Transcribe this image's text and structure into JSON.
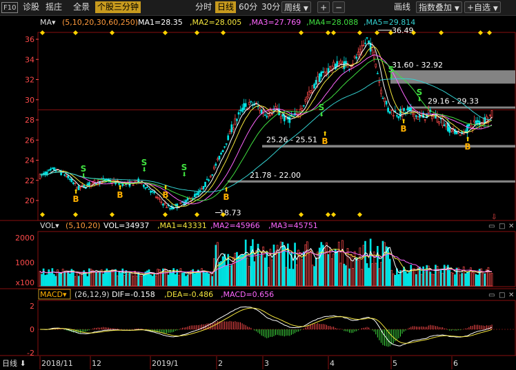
{
  "toolbar": {
    "f10": "F10",
    "zhengu": "诊股",
    "bangzhu": "摇庄",
    "quanjing": "全景",
    "fenzhong": "个股三分钟",
    "fenshi": "分时",
    "rixian": "日线",
    "min60": "60分",
    "min30": "30分",
    "zhouxian": "周线",
    "plus": "+",
    "minus": "−",
    "huaxian": "画线",
    "zhishudiejia": "指数叠加",
    "zixuan": "+自选"
  },
  "main_header": {
    "ma_label": "MA▾",
    "ma_params": "(5,10,20,30,60,250)",
    "ma1": "MA1=28.35",
    "ma2": ",MA2=28.005",
    "ma3": ",MA3=27.769",
    "ma4": ",MA4=28.088",
    "ma5": ",MA5=29.814"
  },
  "vol_header": {
    "label": "VOL▾",
    "params": "(5,10,20)",
    "vol": "VOL=34937",
    "ma1": ",MA1=43331",
    "ma2": ",MA2=45966",
    "ma3": ",MA3=45751"
  },
  "macd_header": {
    "label": "MACD▾",
    "params": "(26,12,9)",
    "dif": "DIF=-0.158",
    "dea": ",DEA=-0.486",
    "macd": ",MACD=0.656"
  },
  "bottom": {
    "period": "日线 ⬇"
  },
  "colors": {
    "up": "#ff4b4b",
    "down": "#00e3e3",
    "ma1": "#ffffff",
    "ma2": "#f5e63d",
    "ma3": "#ff66ff",
    "ma4": "#40e040",
    "ma5": "#33d0d0",
    "signal_s": "#40e040",
    "signal_b": "#ffb000",
    "marker": "#ffd200"
  },
  "chart_data": {
    "type": "candlestick",
    "y_axis": {
      "ticks": [
        20,
        22,
        24,
        26,
        28,
        30,
        32,
        34,
        36
      ]
    },
    "volume_axis": {
      "ticks": [
        "2000",
        "1000",
        "x100"
      ]
    },
    "macd_axis": {
      "ticks": [
        "2",
        "0",
        "-2"
      ]
    },
    "x_labels": [
      "2018/11",
      "12",
      "2019/1",
      "2",
      "3",
      "4",
      "5",
      "6"
    ],
    "annotations": [
      "36.49",
      "31.60 - 32.92",
      "29.16 - 29.33",
      "25.26 - 25.51",
      "21.78 - 22.00",
      "18.73"
    ],
    "support_bands": [
      [
        31.6,
        32.92
      ],
      [
        29.16,
        29.33
      ],
      [
        25.26,
        25.51
      ],
      [
        21.78,
        22.0
      ]
    ],
    "high": 36.49,
    "low": 18.73,
    "signals_s": [
      "2018/11",
      "2018/12",
      "2019/1",
      "2019/4",
      "2019/5",
      "2019/5"
    ],
    "signals_b": [
      "2018/11",
      "2018/12",
      "2019/1",
      "2019/2",
      "2019/4",
      "2019/5",
      "2019/6"
    ]
  }
}
